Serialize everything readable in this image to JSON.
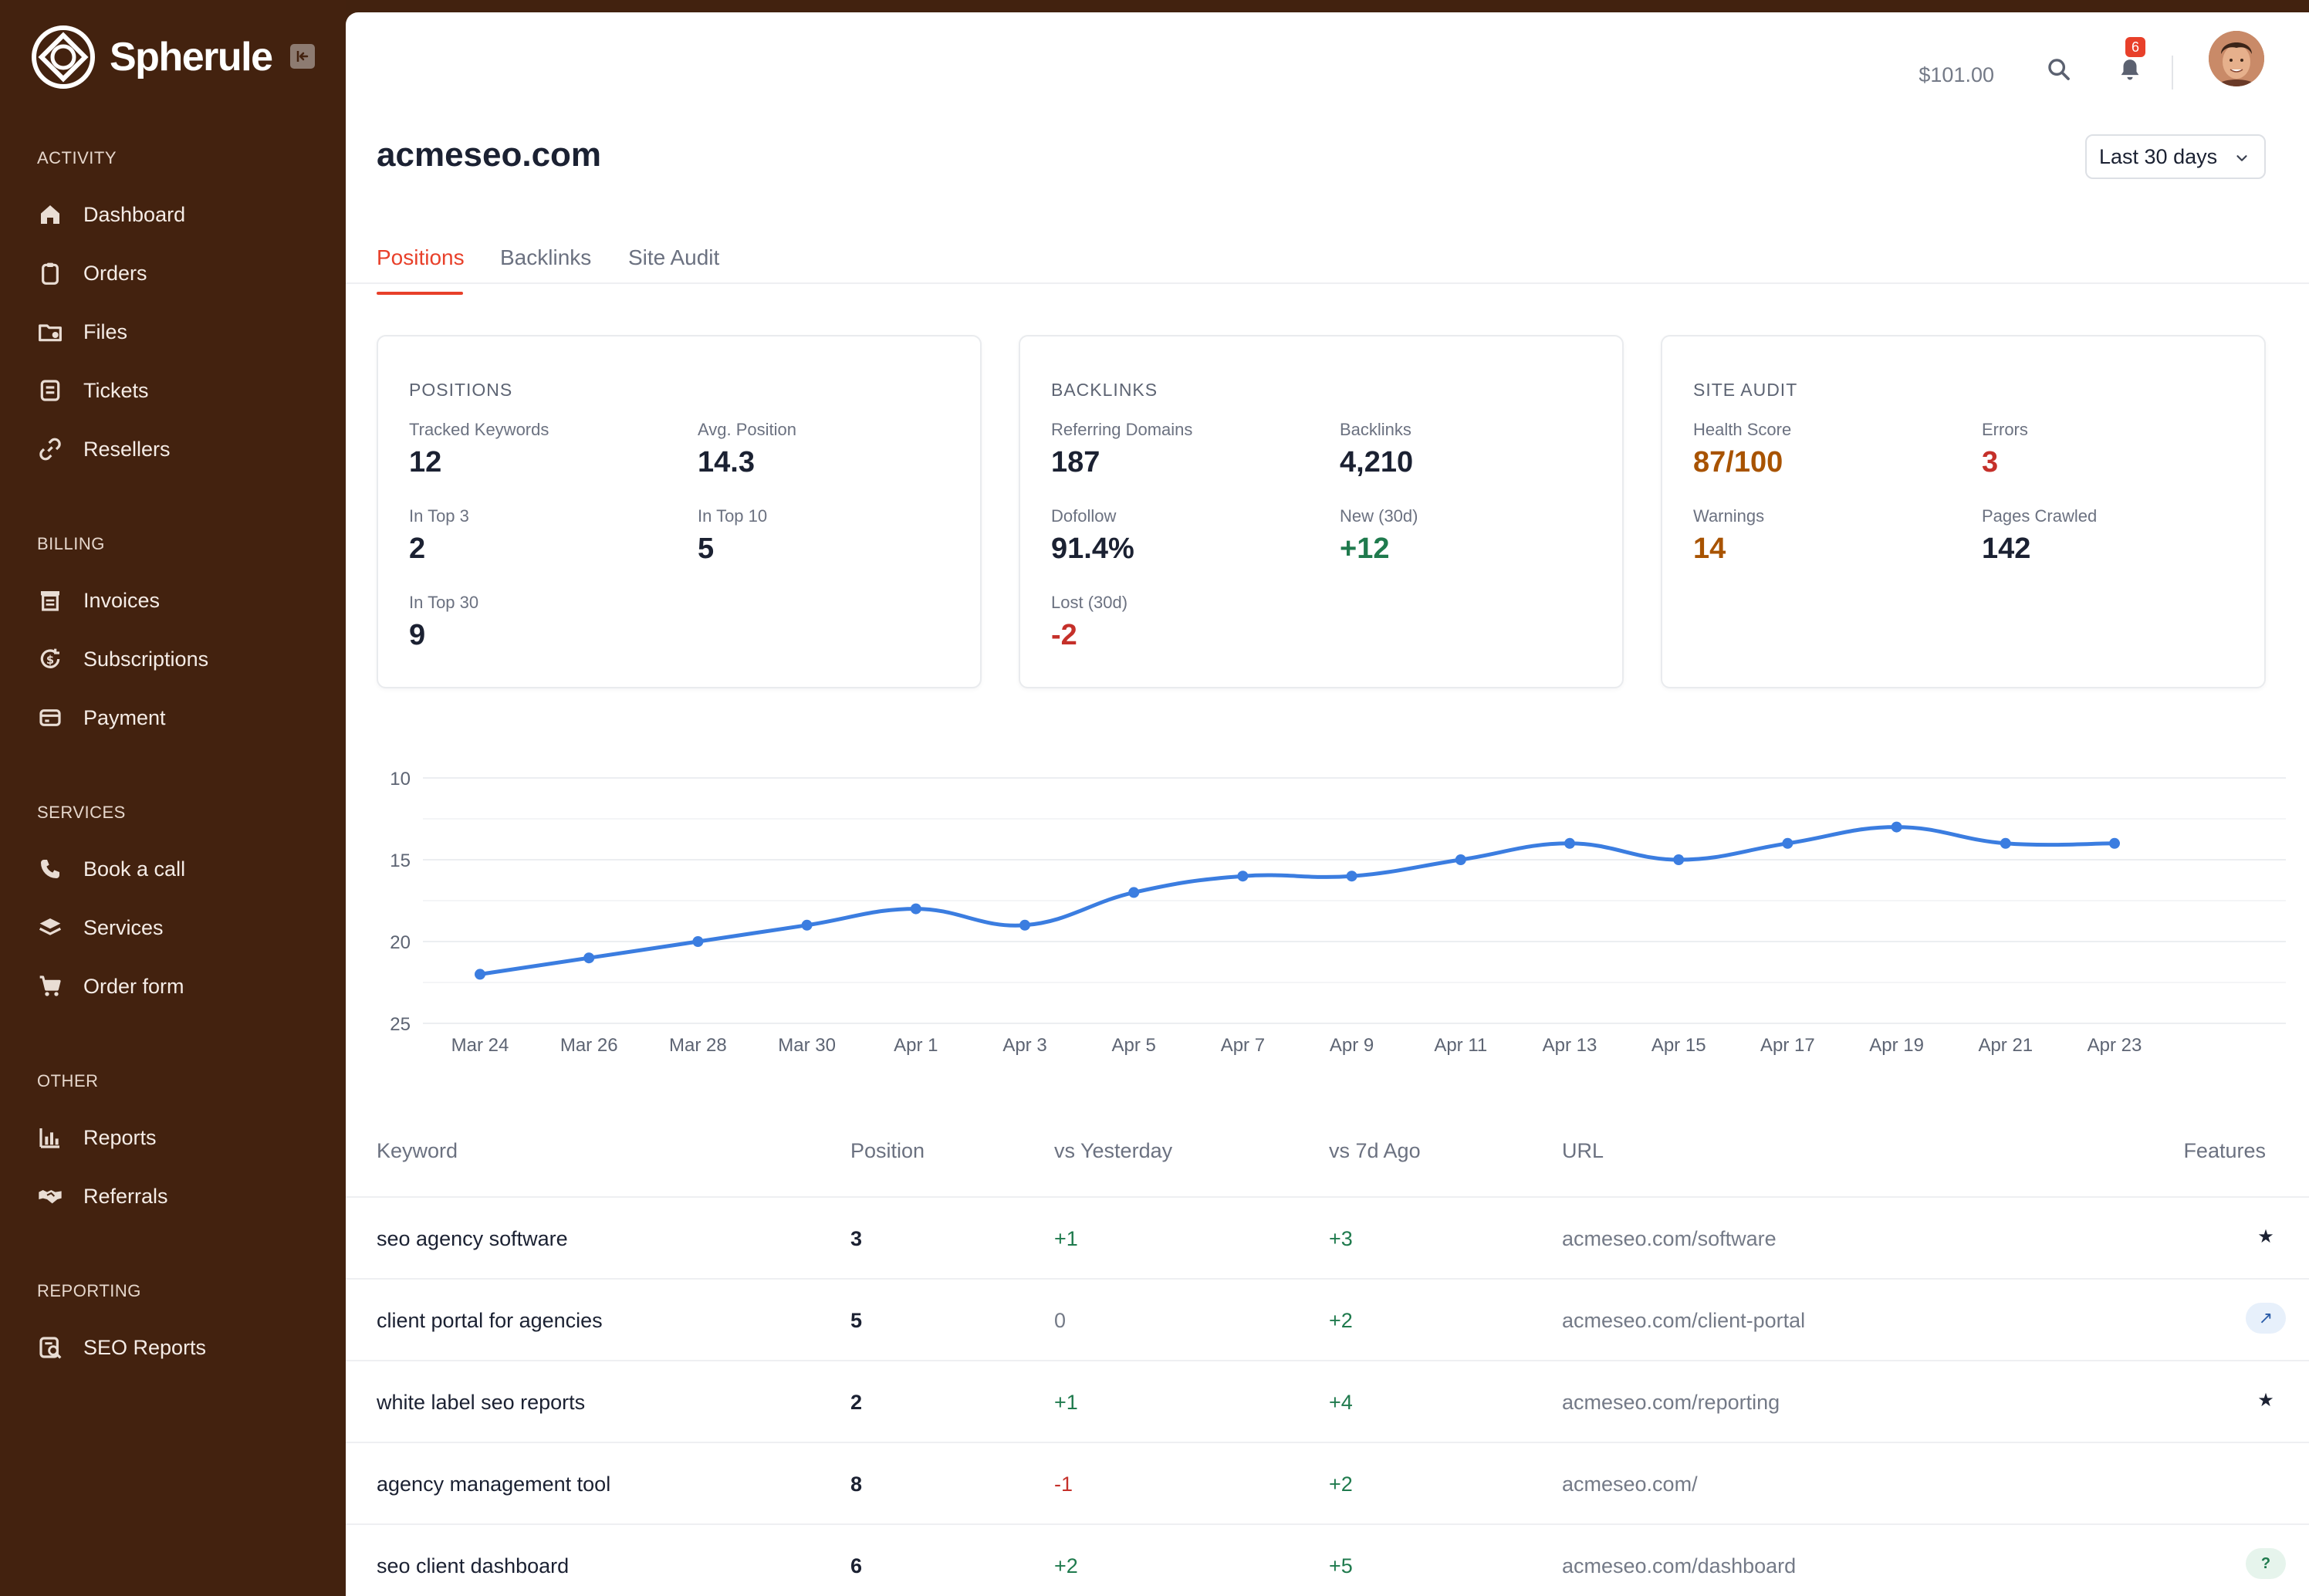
{
  "brand": {
    "name": "Spherule"
  },
  "sidebar": {
    "sections": [
      {
        "title": "ACTIVITY",
        "items": [
          {
            "label": "Dashboard",
            "icon": "home-icon"
          },
          {
            "label": "Orders",
            "icon": "clipboard-icon"
          },
          {
            "label": "Files",
            "icon": "folder-icon"
          },
          {
            "label": "Tickets",
            "icon": "ticket-icon"
          },
          {
            "label": "Resellers",
            "icon": "link-icon"
          }
        ]
      },
      {
        "title": "BILLING",
        "items": [
          {
            "label": "Invoices",
            "icon": "invoice-icon"
          },
          {
            "label": "Subscriptions",
            "icon": "subscription-icon"
          },
          {
            "label": "Payment",
            "icon": "credit-card-icon"
          }
        ]
      },
      {
        "title": "SERVICES",
        "items": [
          {
            "label": "Book a call",
            "icon": "phone-icon"
          },
          {
            "label": "Services",
            "icon": "layers-icon"
          },
          {
            "label": "Order form",
            "icon": "cart-icon"
          }
        ]
      },
      {
        "title": "OTHER",
        "items": [
          {
            "label": "Reports",
            "icon": "bar-chart-icon"
          },
          {
            "label": "Referrals",
            "icon": "handshake-icon"
          }
        ]
      },
      {
        "title": "REPORTING",
        "items": [
          {
            "label": "SEO Reports",
            "icon": "seo-report-icon"
          }
        ]
      }
    ]
  },
  "topbar": {
    "balance": "$101.00",
    "notifications_count": "6"
  },
  "page": {
    "title": "acmeseo.com",
    "range": "Last 30 days",
    "tabs": [
      {
        "label": "Positions",
        "active": true
      },
      {
        "label": "Backlinks",
        "active": false
      },
      {
        "label": "Site Audit",
        "active": false
      }
    ]
  },
  "cards": {
    "positions": {
      "title": "POSITIONS",
      "tracked_label": "Tracked Keywords",
      "tracked_value": "12",
      "avg_label": "Avg. Position",
      "avg_value": "14.3",
      "top3_label": "In Top 3",
      "top3_value": "2",
      "top10_label": "In Top 10",
      "top10_value": "5",
      "top30_label": "In Top 30",
      "top30_value": "9"
    },
    "backlinks": {
      "title": "BACKLINKS",
      "refdom_label": "Referring Domains",
      "refdom_value": "187",
      "backlinks_label": "Backlinks",
      "backlinks_value": "4,210",
      "dofollow_label": "Dofollow",
      "dofollow_value": "91.4%",
      "new_label": "New (30d)",
      "new_value": "+12",
      "lost_label": "Lost (30d)",
      "lost_value": "-2"
    },
    "audit": {
      "title": "SITE AUDIT",
      "health_label": "Health Score",
      "health_value": "87/100",
      "errors_label": "Errors",
      "errors_value": "3",
      "warnings_label": "Warnings",
      "warnings_value": "14",
      "pages_label": "Pages Crawled",
      "pages_value": "142"
    }
  },
  "chart_data": {
    "type": "line",
    "title": "",
    "xlabel": "",
    "ylabel": "",
    "y_reversed": true,
    "ylim": [
      25,
      10
    ],
    "yticks": [
      10,
      15,
      20,
      25
    ],
    "x_tick_labels": [
      "Mar 24",
      "Mar 26",
      "Mar 28",
      "Mar 30",
      "Apr 1",
      "Apr 3",
      "Apr 5",
      "Apr 7",
      "Apr 9",
      "Apr 11",
      "Apr 13",
      "Apr 15",
      "Apr 17",
      "Apr 19",
      "Apr 21",
      "Apr 23"
    ],
    "grid": true,
    "series": [
      {
        "values": [
          22,
          21,
          20,
          19,
          18,
          19,
          17,
          16,
          16,
          15,
          14,
          15,
          14,
          13,
          14,
          14
        ],
        "color": "#3b7de0"
      }
    ]
  },
  "table": {
    "headers": {
      "keyword": "Keyword",
      "position": "Position",
      "vs_yesterday": "vs Yesterday",
      "vs_7d": "vs 7d Ago",
      "url": "URL",
      "features": "Features"
    },
    "rows": [
      {
        "keyword": "seo agency software",
        "position": "3",
        "vs_yesterday": "+1",
        "vs_7d": "+3",
        "url": "acmeseo.com/software",
        "feature": "★",
        "feature_type": "star"
      },
      {
        "keyword": "client portal for agencies",
        "position": "5",
        "vs_yesterday": "0",
        "vs_7d": "+2",
        "url": "acmeseo.com/client-portal",
        "feature": "↗",
        "feature_type": "pill"
      },
      {
        "keyword": "white label seo reports",
        "position": "2",
        "vs_yesterday": "+1",
        "vs_7d": "+4",
        "url": "acmeseo.com/reporting",
        "feature": "★",
        "feature_type": "star"
      },
      {
        "keyword": "agency management tool",
        "position": "8",
        "vs_yesterday": "-1",
        "vs_7d": "+2",
        "url": "acmeseo.com/",
        "feature": "",
        "feature_type": "none"
      },
      {
        "keyword": "seo client dashboard",
        "position": "6",
        "vs_yesterday": "+2",
        "vs_7d": "+5",
        "url": "acmeseo.com/dashboard",
        "feature": "?",
        "feature_type": "help"
      }
    ]
  },
  "colors": {
    "sidebar_bg": "#43220f",
    "accent": "#e8402a",
    "line": "#3b7de0",
    "positive": "#1f7a4d",
    "negative": "#c5302a",
    "warning": "#a85300"
  }
}
